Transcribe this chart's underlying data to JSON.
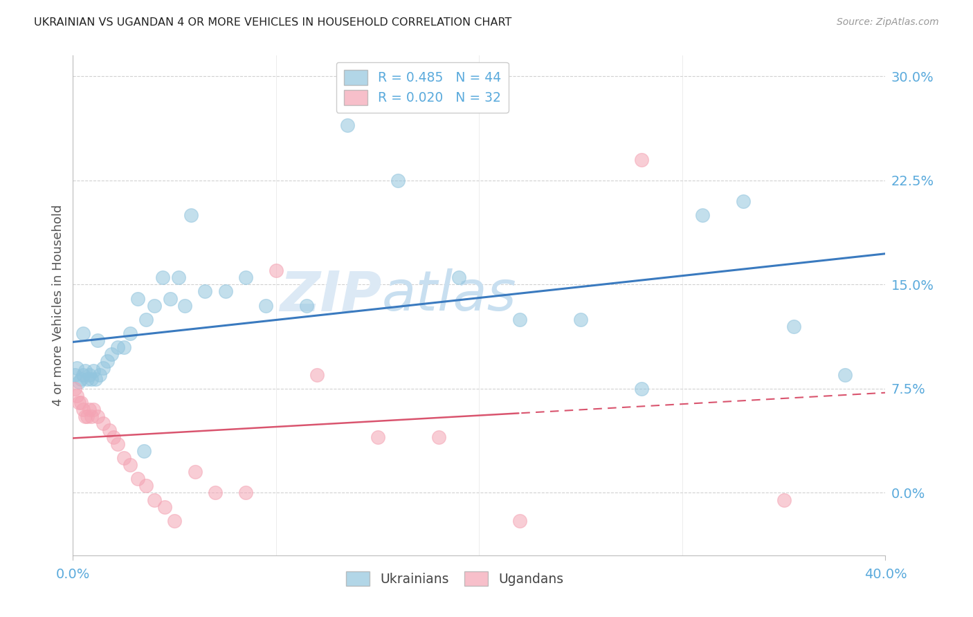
{
  "title": "UKRAINIAN VS UGANDAN 4 OR MORE VEHICLES IN HOUSEHOLD CORRELATION CHART",
  "source": "Source: ZipAtlas.com",
  "ylabel": "4 or more Vehicles in Household",
  "xlim": [
    0.0,
    0.4
  ],
  "ylim": [
    -0.045,
    0.315
  ],
  "watermark_zip": "ZIP",
  "watermark_atlas": "atlas",
  "blue_color": "#92c5de",
  "pink_color": "#f4a4b4",
  "blue_line_color": "#3a7abf",
  "pink_line_color": "#d9546e",
  "grid_color": "#cccccc",
  "axis_tick_color": "#5aaadc",
  "background_color": "#ffffff",
  "ukrainians_x": [
    0.001,
    0.002,
    0.003,
    0.004,
    0.005,
    0.006,
    0.007,
    0.008,
    0.009,
    0.01,
    0.011,
    0.013,
    0.015,
    0.017,
    0.019,
    0.022,
    0.025,
    0.028,
    0.032,
    0.036,
    0.04,
    0.044,
    0.048,
    0.052,
    0.058,
    0.065,
    0.075,
    0.085,
    0.095,
    0.115,
    0.135,
    0.16,
    0.19,
    0.22,
    0.25,
    0.28,
    0.31,
    0.33,
    0.355,
    0.38,
    0.005,
    0.012,
    0.035,
    0.055
  ],
  "ukrainians_y": [
    0.085,
    0.09,
    0.08,
    0.082,
    0.085,
    0.088,
    0.082,
    0.085,
    0.082,
    0.088,
    0.082,
    0.085,
    0.09,
    0.095,
    0.1,
    0.105,
    0.105,
    0.115,
    0.14,
    0.125,
    0.135,
    0.155,
    0.14,
    0.155,
    0.2,
    0.145,
    0.145,
    0.155,
    0.135,
    0.135,
    0.265,
    0.225,
    0.155,
    0.125,
    0.125,
    0.075,
    0.2,
    0.21,
    0.12,
    0.085,
    0.115,
    0.11,
    0.03,
    0.135
  ],
  "ugandans_x": [
    0.001,
    0.002,
    0.003,
    0.004,
    0.005,
    0.006,
    0.007,
    0.008,
    0.009,
    0.01,
    0.012,
    0.015,
    0.018,
    0.02,
    0.022,
    0.025,
    0.028,
    0.032,
    0.036,
    0.04,
    0.045,
    0.05,
    0.06,
    0.07,
    0.085,
    0.1,
    0.12,
    0.15,
    0.18,
    0.22,
    0.28,
    0.35
  ],
  "ugandans_y": [
    0.075,
    0.07,
    0.065,
    0.065,
    0.06,
    0.055,
    0.055,
    0.06,
    0.055,
    0.06,
    0.055,
    0.05,
    0.045,
    0.04,
    0.035,
    0.025,
    0.02,
    0.01,
    0.005,
    -0.005,
    -0.01,
    -0.02,
    0.015,
    0.0,
    0.0,
    0.16,
    0.085,
    0.04,
    0.04,
    -0.02,
    0.24,
    -0.005
  ],
  "ytick_vals": [
    0.0,
    0.075,
    0.15,
    0.225,
    0.3
  ],
  "ytick_labels": [
    "0.0%",
    "7.5%",
    "15.0%",
    "22.5%",
    "30.0%"
  ],
  "xtick_vals": [
    0.0,
    0.4
  ],
  "xtick_labels": [
    "0.0%",
    "40.0%"
  ]
}
